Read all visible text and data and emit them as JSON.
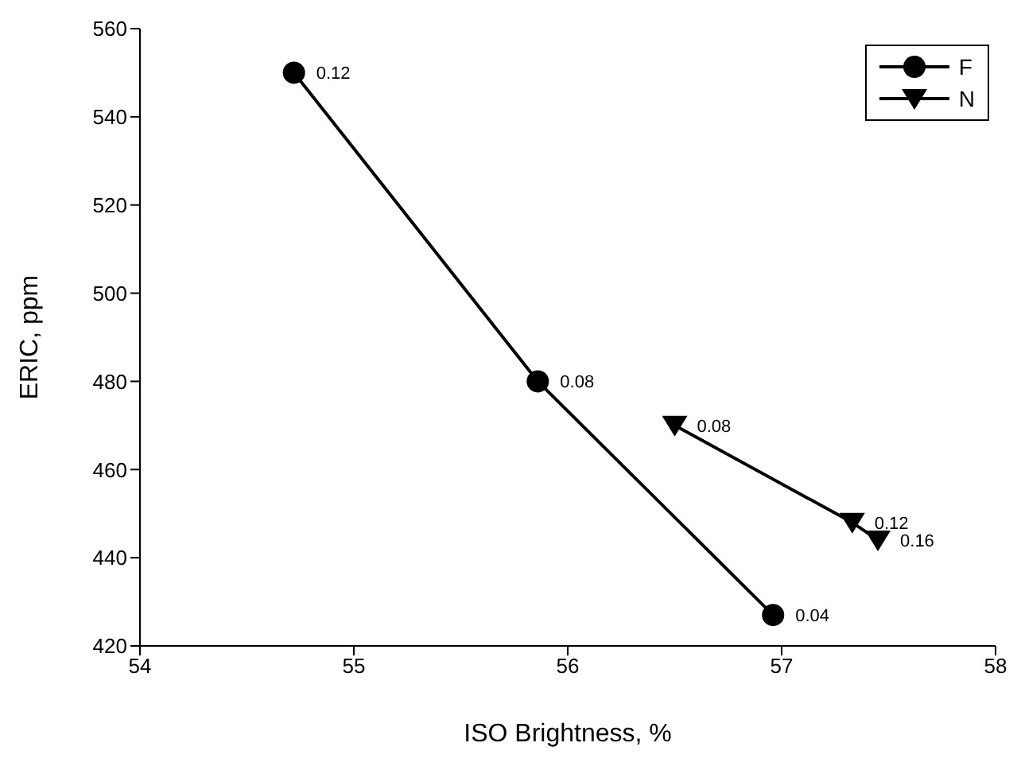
{
  "chart_data": {
    "type": "line",
    "xlabel": "ISO Brightness, %",
    "ylabel": "ERIC, ppm",
    "xlim": [
      54,
      58
    ],
    "xticks": [
      54,
      55,
      56,
      57,
      58
    ],
    "ylim": [
      420,
      560
    ],
    "yticks": [
      420,
      440,
      460,
      480,
      500,
      520,
      540,
      560
    ],
    "legend": "top right",
    "line_style": "solid",
    "series": [
      {
        "name": "F",
        "color": "#000000",
        "marker": "circle",
        "x": [
          54.72,
          55.86,
          56.96
        ],
        "values": [
          550,
          480,
          427
        ]
      },
      {
        "name": "N",
        "color": "#000000",
        "marker": "triangle",
        "x": [
          56.5,
          57.33,
          57.45
        ],
        "values": [
          470,
          448,
          444
        ]
      }
    ],
    "annotations": [
      {
        "text": "0.12",
        "x": 54.72,
        "y": 550
      },
      {
        "text": "0.08",
        "x": 55.86,
        "y": 480
      },
      {
        "text": "0.04",
        "x": 56.96,
        "y": 427
      },
      {
        "text": "0.08",
        "x": 56.5,
        "y": 470
      },
      {
        "text": "0.12",
        "x": 57.33,
        "y": 448
      },
      {
        "text": "0.16",
        "x": 57.45,
        "y": 444
      }
    ]
  }
}
